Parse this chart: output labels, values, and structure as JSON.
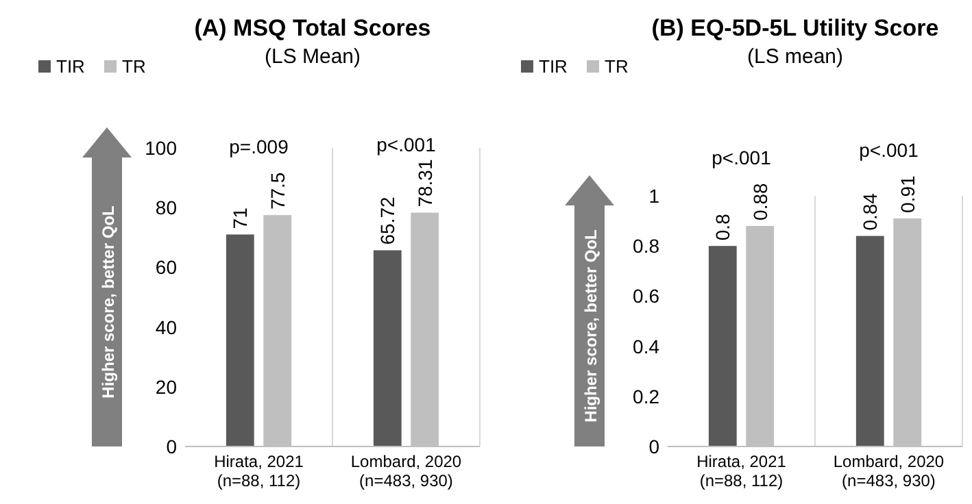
{
  "chart_data": [
    {
      "type": "bar",
      "title": "(A) MSQ Total Scores",
      "subtitle": "(LS Mean)",
      "categories": [
        "Hirata, 2021\n(n=88, 112)",
        "Lombard, 2020\n(n=483, 930)"
      ],
      "series": [
        {
          "name": "TIR",
          "color": "#595959",
          "values": [
            71,
            65.72
          ]
        },
        {
          "name": "TR",
          "color": "#bfbfbf",
          "values": [
            77.5,
            78.31
          ]
        }
      ],
      "ylim": [
        0,
        100
      ],
      "yticks": [
        0,
        20,
        40,
        60,
        80,
        100
      ],
      "grid": "x",
      "legend": "top left",
      "data_labels": true,
      "annotations": [
        "p=.009",
        "p<.001",
        "Higher score, better QoL"
      ]
    },
    {
      "type": "bar",
      "title": "(B) EQ-5D-5L Utility Score",
      "subtitle": "(LS mean)",
      "categories": [
        "Hirata, 2021\n(n=88, 112)",
        "Lombard, 2020\n(n=483, 930)"
      ],
      "series": [
        {
          "name": "TIR",
          "color": "#595959",
          "values": [
            0.8,
            0.84
          ]
        },
        {
          "name": "TR",
          "color": "#bfbfbf",
          "values": [
            0.88,
            0.91
          ]
        }
      ],
      "ylim": [
        0,
        1
      ],
      "yticks": [
        0,
        0.2,
        0.4,
        0.6,
        0.8,
        1
      ],
      "grid": "x",
      "legend": "top left",
      "data_labels": true,
      "annotations": [
        "p<.001",
        "p<.001",
        "Higher score, better QoL"
      ]
    }
  ]
}
